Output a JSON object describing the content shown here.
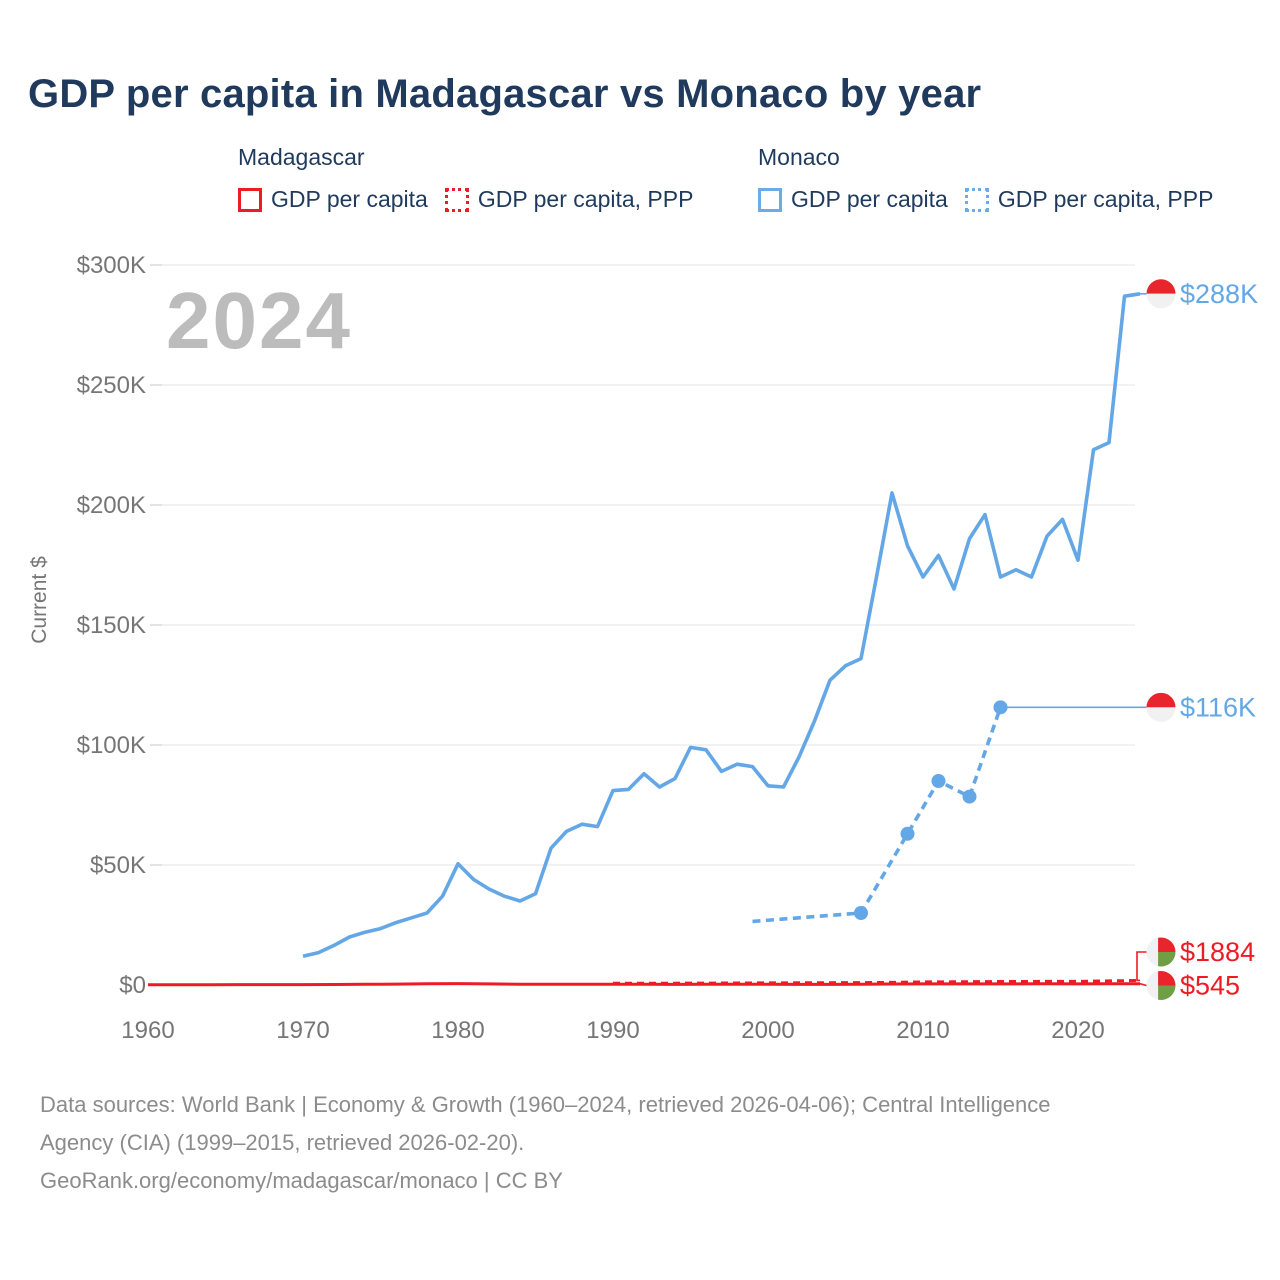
{
  "title": {
    "text": "GDP per capita in Madagascar vs Monaco by year",
    "color": "#1f3a5c"
  },
  "watermark": {
    "text": "2024",
    "color": "#bcbcbc"
  },
  "legend": {
    "text_color": "#1f3a5c",
    "groups": [
      {
        "country": "Madagascar",
        "color": "#ed1c24",
        "items": [
          {
            "label": "GDP per capita",
            "line_style": "solid"
          },
          {
            "label": "GDP per capita, PPP",
            "line_style": "dotted"
          }
        ]
      },
      {
        "country": "Monaco",
        "color": "#6aabe8",
        "items": [
          {
            "label": "GDP per capita",
            "line_style": "solid"
          },
          {
            "label": "GDP per capita, PPP",
            "line_style": "dotted"
          }
        ]
      }
    ]
  },
  "footer": {
    "color": "#8c8c8c",
    "lines": [
      "Data sources: World Bank | Economy & Growth (1960–2024, retrieved 2026-04-06); Central Intelligence",
      "Agency (CIA) (1999–2015, retrieved 2026-02-20).",
      "GeoRank.org/economy/madagascar/monaco | CC BY"
    ]
  },
  "chart_data": {
    "type": "line",
    "title": "GDP per capita in Madagascar vs Monaco by year",
    "xlabel": "",
    "ylabel": "Current $",
    "xlim": [
      1958,
      2026
    ],
    "ylim": [
      0,
      312000
    ],
    "grid": "horizontal",
    "legend_position": "top",
    "x_axis": {
      "ticks": [
        {
          "v": 1960,
          "label": "1960"
        },
        {
          "v": 1970,
          "label": "1970"
        },
        {
          "v": 1980,
          "label": "1980"
        },
        {
          "v": 1990,
          "label": "1990"
        },
        {
          "v": 2000,
          "label": "2000"
        },
        {
          "v": 2010,
          "label": "2010"
        },
        {
          "v": 2020,
          "label": "2020"
        }
      ]
    },
    "y_axis": {
      "title": "Current $",
      "ticks": [
        {
          "v": 0,
          "label": "$0"
        },
        {
          "v": 50000,
          "label": "$50K"
        },
        {
          "v": 100000,
          "label": "$100K"
        },
        {
          "v": 150000,
          "label": "$150K"
        },
        {
          "v": 200000,
          "label": "$200K"
        },
        {
          "v": 250000,
          "label": "$250K"
        },
        {
          "v": 300000,
          "label": "$300K"
        }
      ]
    },
    "series": [
      {
        "id": "mg-gdp",
        "name": "Madagascar GDP per capita",
        "color": "#ee1b24",
        "style": "solid",
        "end_label": "$545",
        "flag": "madagascar",
        "points": [
          [
            1960,
            132
          ],
          [
            1962,
            140
          ],
          [
            1964,
            145
          ],
          [
            1966,
            155
          ],
          [
            1968,
            170
          ],
          [
            1970,
            180
          ],
          [
            1972,
            220
          ],
          [
            1974,
            300
          ],
          [
            1976,
            390
          ],
          [
            1978,
            480
          ],
          [
            1980,
            600
          ],
          [
            1982,
            450
          ],
          [
            1984,
            330
          ],
          [
            1986,
            310
          ],
          [
            1988,
            320
          ],
          [
            1990,
            320
          ],
          [
            1992,
            280
          ],
          [
            1994,
            230
          ],
          [
            1996,
            290
          ],
          [
            1998,
            280
          ],
          [
            2000,
            290
          ],
          [
            2002,
            270
          ],
          [
            2004,
            250
          ],
          [
            2006,
            290
          ],
          [
            2008,
            420
          ],
          [
            2010,
            470
          ],
          [
            2012,
            440
          ],
          [
            2014,
            450
          ],
          [
            2016,
            460
          ],
          [
            2018,
            500
          ],
          [
            2020,
            470
          ],
          [
            2022,
            500
          ],
          [
            2024,
            545
          ]
        ]
      },
      {
        "id": "mg-ppp",
        "name": "Madagascar GDP per capita, PPP",
        "color": "#ee1b24",
        "style": "dashed",
        "end_label": "$1884",
        "flag": "madagascar",
        "points": [
          [
            1990,
            700
          ],
          [
            1992,
            720
          ],
          [
            1994,
            740
          ],
          [
            1996,
            800
          ],
          [
            1998,
            840
          ],
          [
            2000,
            880
          ],
          [
            2002,
            900
          ],
          [
            2004,
            950
          ],
          [
            2006,
            1000
          ],
          [
            2008,
            1100
          ],
          [
            2010,
            1300
          ],
          [
            2012,
            1350
          ],
          [
            2014,
            1400
          ],
          [
            2016,
            1450
          ],
          [
            2018,
            1520
          ],
          [
            2020,
            1500
          ],
          [
            2022,
            1700
          ],
          [
            2024,
            1884
          ]
        ]
      },
      {
        "id": "mc-ppp",
        "name": "Monaco GDP per capita, PPP",
        "color": "#64a7e6",
        "style": "dashed",
        "end_label": "$116K",
        "flag": "monaco",
        "marker_years": [
          2006,
          2009,
          2011,
          2013,
          2015
        ],
        "points": [
          [
            1999,
            26500
          ],
          [
            2006,
            30000
          ],
          [
            2009,
            63000
          ],
          [
            2011,
            85000
          ],
          [
            2013,
            78500
          ],
          [
            2015,
            115700
          ]
        ]
      },
      {
        "id": "mc-gdp",
        "name": "Monaco GDP per capita",
        "color": "#64a7e6",
        "style": "solid",
        "end_label": "$288K",
        "flag": "monaco",
        "points": [
          [
            1970,
            12000
          ],
          [
            1971,
            13500
          ],
          [
            1972,
            16500
          ],
          [
            1973,
            20000
          ],
          [
            1974,
            22000
          ],
          [
            1975,
            23500
          ],
          [
            1976,
            26000
          ],
          [
            1977,
            28000
          ],
          [
            1978,
            30000
          ],
          [
            1979,
            37000
          ],
          [
            1980,
            50500
          ],
          [
            1981,
            44000
          ],
          [
            1982,
            40000
          ],
          [
            1983,
            37000
          ],
          [
            1984,
            35000
          ],
          [
            1985,
            38000
          ],
          [
            1986,
            57000
          ],
          [
            1987,
            64000
          ],
          [
            1988,
            67000
          ],
          [
            1989,
            66000
          ],
          [
            1990,
            81000
          ],
          [
            1991,
            81500
          ],
          [
            1992,
            88000
          ],
          [
            1993,
            82500
          ],
          [
            1994,
            86000
          ],
          [
            1995,
            99000
          ],
          [
            1996,
            98000
          ],
          [
            1997,
            89000
          ],
          [
            1998,
            92000
          ],
          [
            1999,
            91000
          ],
          [
            2000,
            83000
          ],
          [
            2001,
            82500
          ],
          [
            2002,
            95000
          ],
          [
            2003,
            110000
          ],
          [
            2004,
            127000
          ],
          [
            2005,
            133000
          ],
          [
            2006,
            136000
          ],
          [
            2007,
            170000
          ],
          [
            2008,
            205000
          ],
          [
            2009,
            183000
          ],
          [
            2010,
            170000
          ],
          [
            2011,
            179000
          ],
          [
            2012,
            165000
          ],
          [
            2013,
            186000
          ],
          [
            2014,
            196000
          ],
          [
            2015,
            170000
          ],
          [
            2016,
            173000
          ],
          [
            2017,
            170000
          ],
          [
            2018,
            187000
          ],
          [
            2019,
            194000
          ],
          [
            2020,
            177000
          ],
          [
            2021,
            223000
          ],
          [
            2022,
            226000
          ],
          [
            2023,
            287000
          ],
          [
            2024,
            288000
          ]
        ]
      }
    ],
    "flag_colors": {
      "monaco_red": "#e8252c",
      "monaco_white": "#f1f1f1",
      "madagascar_white": "#f1f1f1",
      "madagascar_red": "#e8252c",
      "madagascar_green": "#6f9e44"
    }
  }
}
